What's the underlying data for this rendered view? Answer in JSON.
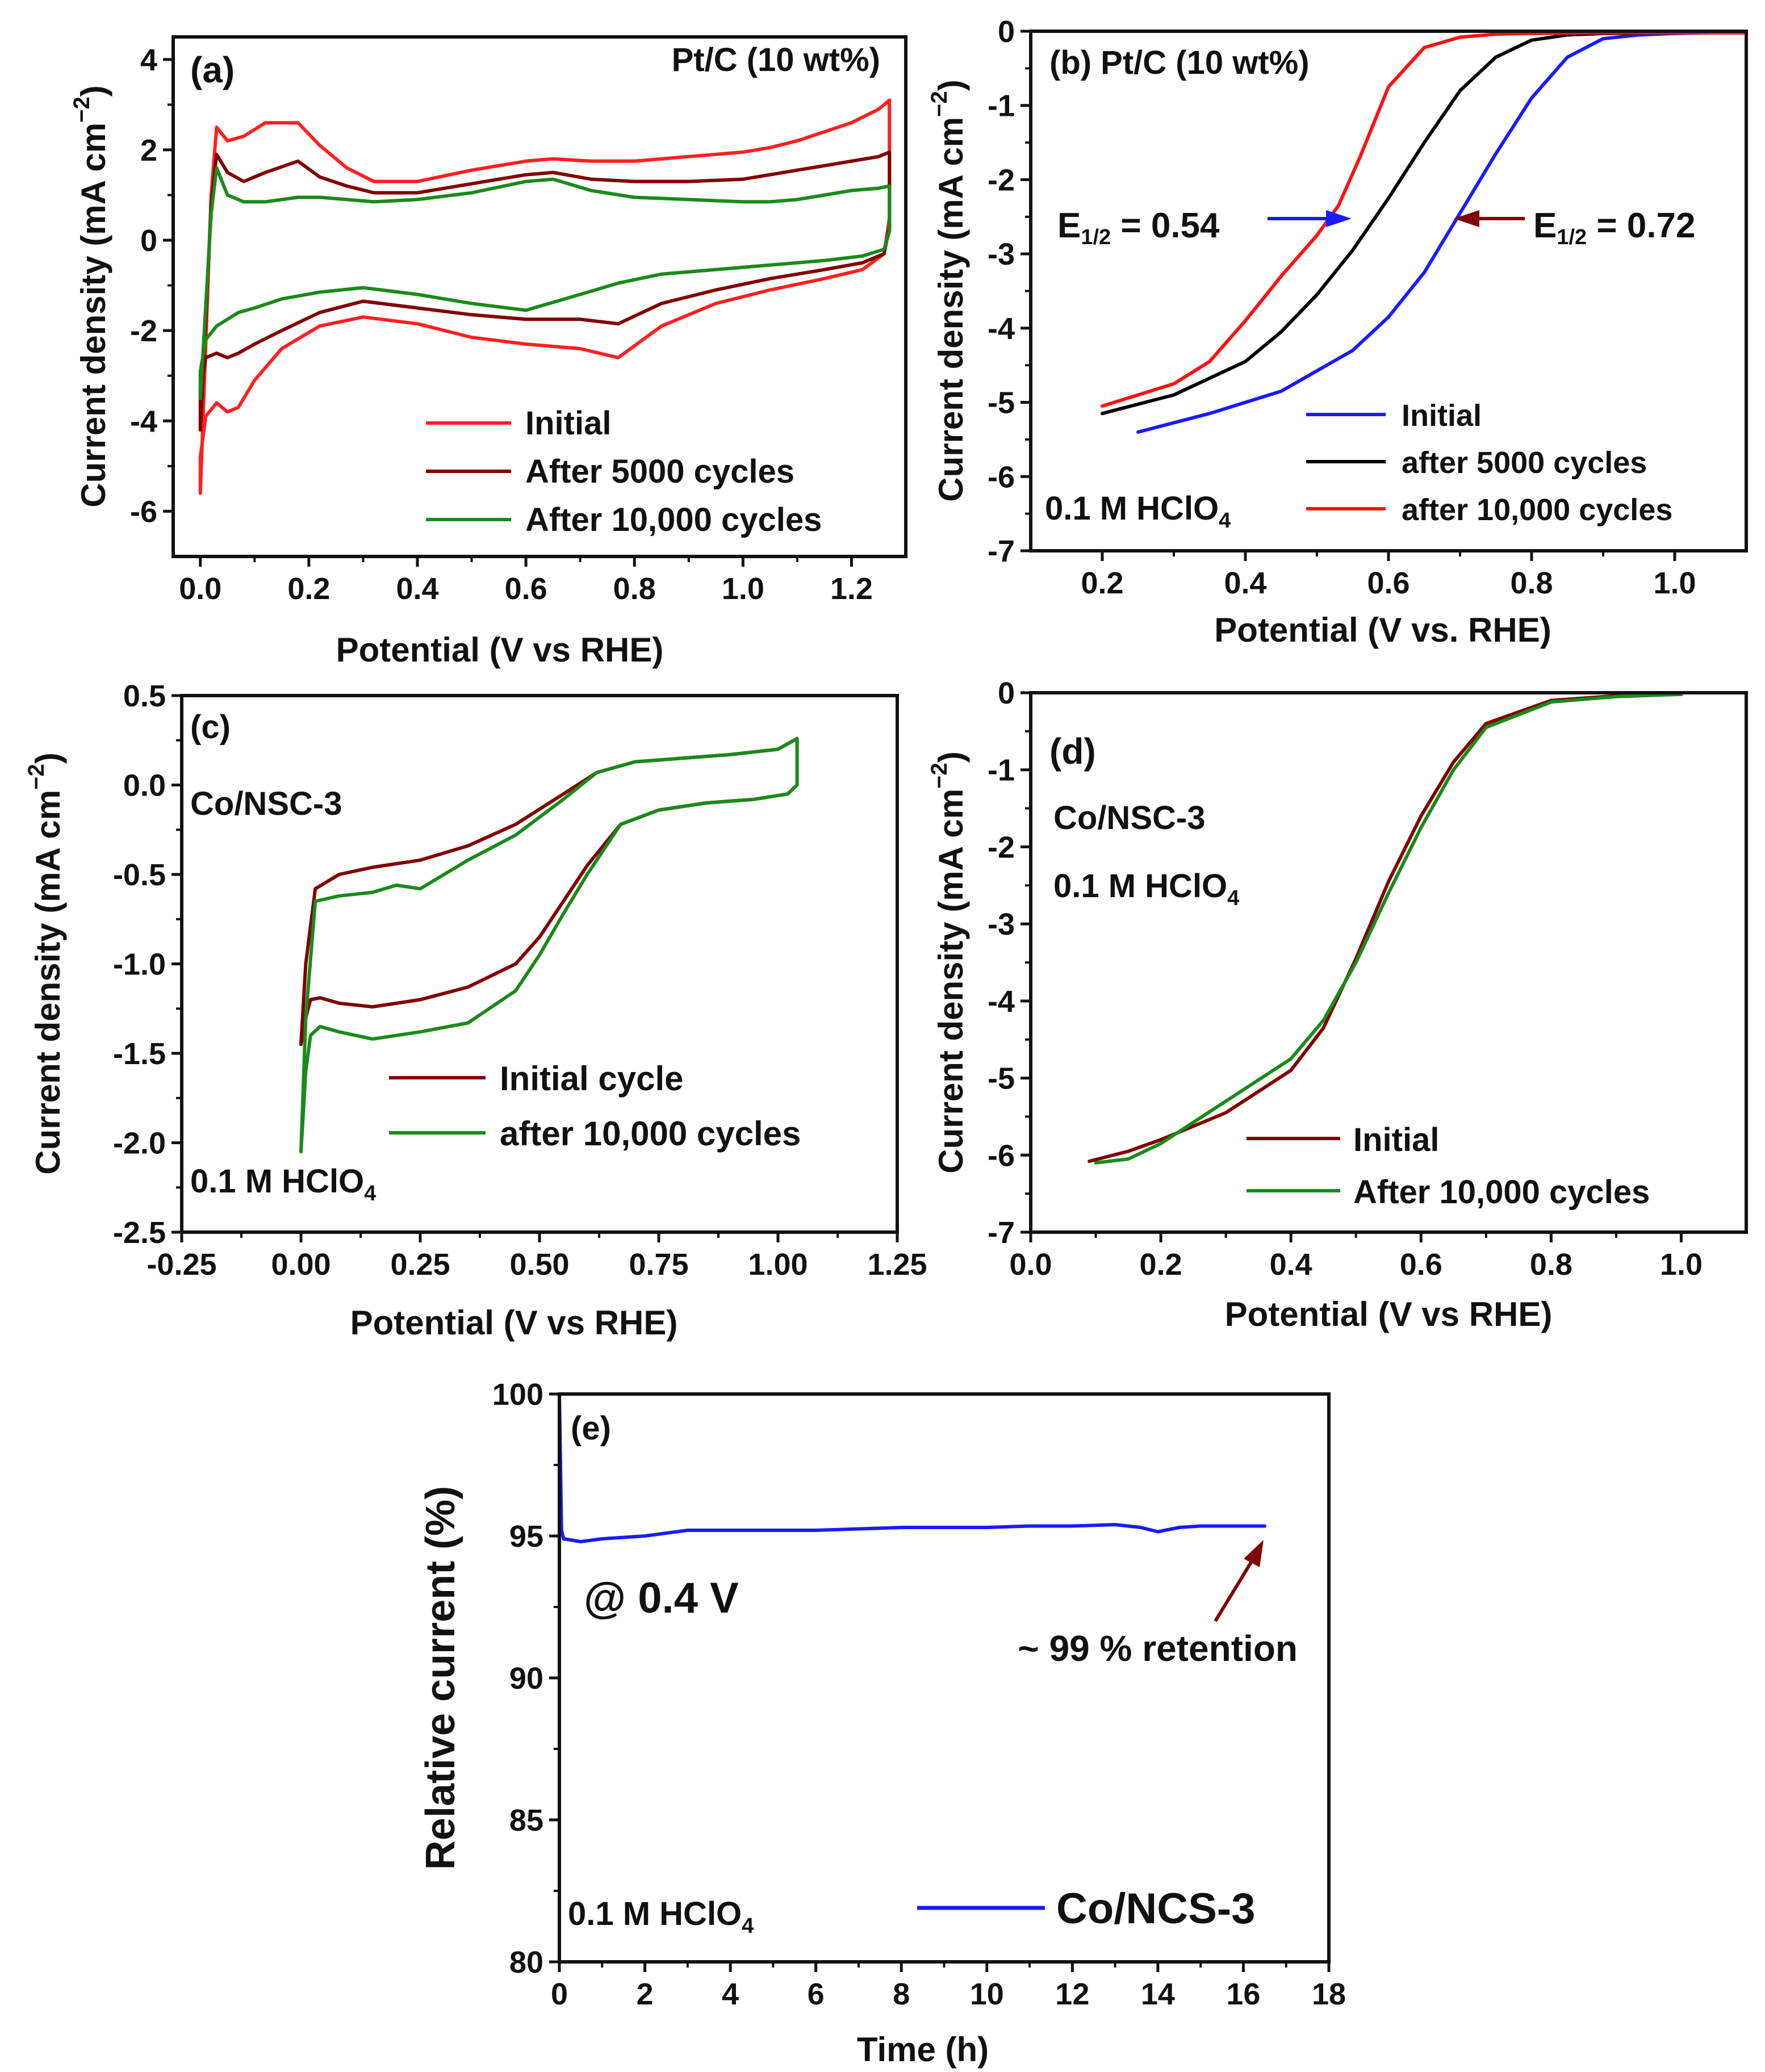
{
  "chart_data": [
    {
      "panel": "(a)",
      "type": "line",
      "title": "",
      "xlabel": "Potential (V vs RHE)",
      "ylabel": "Current density (mA cm−2)",
      "xlim": [
        -0.05,
        1.3
      ],
      "ylim": [
        -7,
        4.5
      ],
      "xticks": [
        "0.0",
        "0.2",
        "0.4",
        "0.6",
        "0.8",
        "1.0",
        "1.2"
      ],
      "yticks": [
        "-6",
        "-4",
        "-2",
        "0",
        "2",
        "4"
      ],
      "annotations": [
        "Pt/C (10 wt%)"
      ],
      "legend_position": "bottom-right",
      "series": [
        {
          "name": "Initial",
          "color": "#ff2020",
          "x": [
            0.0,
            0.02,
            0.03,
            0.05,
            0.08,
            0.12,
            0.18,
            0.22,
            0.27,
            0.32,
            0.4,
            0.5,
            0.6,
            0.65,
            0.72,
            0.8,
            0.9,
            1.0,
            1.05,
            1.1,
            1.15,
            1.2,
            1.25,
            1.27,
            1.27,
            1.26,
            1.22,
            1.15,
            1.05,
            0.95,
            0.85,
            0.77,
            0.7,
            0.6,
            0.5,
            0.4,
            0.3,
            0.22,
            0.15,
            0.1,
            0.07,
            0.05,
            0.03,
            0.01,
            0.0,
            0.0
          ],
          "y": [
            -5.6,
            1.0,
            2.5,
            2.2,
            2.3,
            2.6,
            2.6,
            2.1,
            1.6,
            1.3,
            1.3,
            1.55,
            1.75,
            1.8,
            1.75,
            1.75,
            1.85,
            1.95,
            2.05,
            2.2,
            2.4,
            2.6,
            2.9,
            3.1,
            0.5,
            -0.3,
            -0.65,
            -0.85,
            -1.1,
            -1.4,
            -1.9,
            -2.6,
            -2.4,
            -2.3,
            -2.15,
            -1.85,
            -1.7,
            -1.9,
            -2.4,
            -3.1,
            -3.7,
            -3.8,
            -3.6,
            -3.9,
            -4.8,
            -5.6
          ]
        },
        {
          "name": "After 5000 cycles",
          "color": "#800000",
          "x": [
            0.0,
            0.02,
            0.03,
            0.05,
            0.08,
            0.12,
            0.18,
            0.22,
            0.27,
            0.32,
            0.4,
            0.5,
            0.6,
            0.65,
            0.72,
            0.8,
            0.9,
            1.0,
            1.05,
            1.1,
            1.15,
            1.2,
            1.25,
            1.27,
            1.27,
            1.26,
            1.22,
            1.15,
            1.05,
            0.95,
            0.85,
            0.77,
            0.7,
            0.6,
            0.5,
            0.4,
            0.3,
            0.22,
            0.15,
            0.1,
            0.07,
            0.05,
            0.03,
            0.01,
            0.0,
            0.0
          ],
          "y": [
            -4.2,
            0.8,
            1.9,
            1.5,
            1.3,
            1.5,
            1.75,
            1.4,
            1.2,
            1.05,
            1.05,
            1.25,
            1.45,
            1.5,
            1.35,
            1.3,
            1.3,
            1.35,
            1.45,
            1.55,
            1.65,
            1.75,
            1.85,
            1.95,
            0.3,
            -0.3,
            -0.5,
            -0.65,
            -0.85,
            -1.1,
            -1.4,
            -1.85,
            -1.75,
            -1.75,
            -1.65,
            -1.5,
            -1.35,
            -1.6,
            -2.0,
            -2.3,
            -2.5,
            -2.6,
            -2.5,
            -2.6,
            -3.3,
            -4.2
          ]
        },
        {
          "name": "After 10,000 cycles",
          "color": "#1a8a1a",
          "x": [
            0.0,
            0.02,
            0.03,
            0.05,
            0.08,
            0.12,
            0.18,
            0.22,
            0.27,
            0.32,
            0.4,
            0.5,
            0.6,
            0.65,
            0.72,
            0.8,
            0.9,
            1.0,
            1.05,
            1.1,
            1.15,
            1.2,
            1.25,
            1.27,
            1.27,
            1.26,
            1.22,
            1.15,
            1.05,
            0.95,
            0.85,
            0.77,
            0.7,
            0.6,
            0.5,
            0.4,
            0.3,
            0.22,
            0.15,
            0.1,
            0.07,
            0.05,
            0.03,
            0.01,
            0.0,
            0.0
          ],
          "y": [
            -3.5,
            0.6,
            1.6,
            1.0,
            0.85,
            0.85,
            0.95,
            0.95,
            0.9,
            0.85,
            0.9,
            1.05,
            1.3,
            1.35,
            1.1,
            0.95,
            0.9,
            0.85,
            0.85,
            0.9,
            1.0,
            1.1,
            1.15,
            1.2,
            0.2,
            -0.2,
            -0.35,
            -0.45,
            -0.55,
            -0.65,
            -0.75,
            -0.95,
            -1.2,
            -1.55,
            -1.4,
            -1.2,
            -1.05,
            -1.15,
            -1.3,
            -1.5,
            -1.6,
            -1.75,
            -1.9,
            -2.2,
            -2.9,
            -3.5
          ]
        }
      ]
    },
    {
      "panel": "(b)",
      "type": "line",
      "title": "",
      "xlabel": "Potential (V vs. RHE)",
      "ylabel": "Current density (mA cm−2)",
      "xlim": [
        0.1,
        1.1
      ],
      "ylim": [
        -7,
        0
      ],
      "xticks": [
        "0.2",
        "0.4",
        "0.6",
        "0.8",
        "1.0"
      ],
      "yticks": [
        "-7",
        "-6",
        "-5",
        "-4",
        "-3",
        "-2",
        "-1",
        "0"
      ],
      "annotations": [
        "Pt/C (10 wt%)",
        "E1/2 = 0.54",
        "E1/2 = 0.72",
        "0.1 M HClO4"
      ],
      "legend_position": "bottom-right",
      "series": [
        {
          "name": "Initial",
          "color": "#1a1aff",
          "x": [
            0.25,
            0.35,
            0.45,
            0.55,
            0.6,
            0.65,
            0.7,
            0.75,
            0.8,
            0.85,
            0.9,
            0.95,
            1.0,
            1.05,
            1.1
          ],
          "y": [
            -5.4,
            -5.15,
            -4.85,
            -4.3,
            -3.85,
            -3.25,
            -2.45,
            -1.65,
            -0.9,
            -0.35,
            -0.1,
            -0.05,
            -0.03,
            -0.02,
            -0.02
          ]
        },
        {
          "name": "after 5000 cycles",
          "color": "#000000",
          "x": [
            0.2,
            0.3,
            0.4,
            0.45,
            0.5,
            0.55,
            0.6,
            0.65,
            0.7,
            0.75,
            0.8,
            0.85,
            0.9,
            1.0,
            1.1
          ],
          "y": [
            -5.15,
            -4.9,
            -4.45,
            -4.05,
            -3.55,
            -2.95,
            -2.25,
            -1.5,
            -0.8,
            -0.35,
            -0.12,
            -0.05,
            -0.03,
            -0.02,
            -0.02
          ]
        },
        {
          "name": "after 10,000 cycles",
          "color": "#ff1010",
          "x": [
            0.2,
            0.3,
            0.35,
            0.4,
            0.45,
            0.5,
            0.53,
            0.56,
            0.6,
            0.65,
            0.7,
            0.75,
            0.8,
            0.9,
            1.0,
            1.1
          ],
          "y": [
            -5.05,
            -4.75,
            -4.45,
            -3.9,
            -3.3,
            -2.75,
            -2.35,
            -1.7,
            -0.75,
            -0.22,
            -0.08,
            -0.04,
            -0.03,
            -0.02,
            -0.02,
            -0.02
          ]
        }
      ]
    },
    {
      "panel": "(c)",
      "type": "line",
      "title": "",
      "xlabel": "Potential (V vs RHE)",
      "ylabel": "Current density (mA cm−2)",
      "xlim": [
        -0.25,
        1.25
      ],
      "ylim": [
        -2.5,
        0.5
      ],
      "xticks": [
        "-0.25",
        "0.00",
        "0.25",
        "0.50",
        "0.75",
        "1.00",
        "1.25"
      ],
      "yticks": [
        "-2.5",
        "-2.0",
        "-1.5",
        "-1.0",
        "-0.5",
        "0.0",
        "0.5"
      ],
      "annotations": [
        "Co/NSC-3",
        "0.1 M HClO4"
      ],
      "legend_position": "bottom-right",
      "series": [
        {
          "name": "Initial cycle",
          "color": "#800000",
          "x": [
            0.0,
            0.01,
            0.03,
            0.08,
            0.15,
            0.25,
            0.35,
            0.45,
            0.55,
            0.62,
            0.7,
            0.8,
            0.9,
            1.0,
            1.04,
            1.04,
            1.02,
            0.95,
            0.85,
            0.75,
            0.67,
            0.6,
            0.55,
            0.5,
            0.45,
            0.35,
            0.25,
            0.15,
            0.08,
            0.04,
            0.02,
            0.01,
            0.0
          ],
          "y": [
            -1.45,
            -1.0,
            -0.58,
            -0.5,
            -0.46,
            -0.42,
            -0.34,
            -0.22,
            -0.05,
            0.07,
            0.13,
            0.15,
            0.17,
            0.2,
            0.26,
            0.0,
            -0.05,
            -0.08,
            -0.1,
            -0.14,
            -0.22,
            -0.45,
            -0.65,
            -0.85,
            -1.0,
            -1.13,
            -1.2,
            -1.24,
            -1.22,
            -1.19,
            -1.2,
            -1.3,
            -1.45
          ]
        },
        {
          "name": "after 10,000 cycles",
          "color": "#1a8a1a",
          "x": [
            0.0,
            0.01,
            0.03,
            0.08,
            0.15,
            0.2,
            0.25,
            0.35,
            0.45,
            0.55,
            0.62,
            0.7,
            0.8,
            0.9,
            1.0,
            1.04,
            1.04,
            1.02,
            0.95,
            0.85,
            0.75,
            0.67,
            0.6,
            0.55,
            0.5,
            0.45,
            0.35,
            0.25,
            0.15,
            0.08,
            0.04,
            0.02,
            0.01,
            0.0
          ],
          "y": [
            -2.05,
            -1.3,
            -0.65,
            -0.62,
            -0.6,
            -0.56,
            -0.58,
            -0.42,
            -0.28,
            -0.08,
            0.07,
            0.13,
            0.15,
            0.17,
            0.2,
            0.26,
            0.0,
            -0.05,
            -0.08,
            -0.1,
            -0.14,
            -0.22,
            -0.5,
            -0.72,
            -0.95,
            -1.15,
            -1.33,
            -1.38,
            -1.42,
            -1.38,
            -1.35,
            -1.4,
            -1.6,
            -2.05
          ]
        }
      ]
    },
    {
      "panel": "(d)",
      "type": "line",
      "title": "",
      "xlabel": "Potential (V vs RHE)",
      "ylabel": "Current density (mA cm−2)",
      "xlim": [
        0.0,
        1.1
      ],
      "ylim": [
        -7,
        0
      ],
      "xticks": [
        "0.0",
        "0.2",
        "0.4",
        "0.6",
        "0.8",
        "1.0"
      ],
      "yticks": [
        "-7",
        "-6",
        "-5",
        "-4",
        "-3",
        "-2",
        "-1",
        "0"
      ],
      "annotations": [
        "Co/NSC-3",
        "0.1 M HClO4"
      ],
      "legend_position": "bottom-right",
      "series": [
        {
          "name": "Initial",
          "color": "#800000",
          "x": [
            0.09,
            0.15,
            0.2,
            0.3,
            0.4,
            0.45,
            0.5,
            0.55,
            0.6,
            0.65,
            0.7,
            0.8,
            0.9,
            1.0
          ],
          "y": [
            -6.08,
            -5.95,
            -5.8,
            -5.45,
            -4.9,
            -4.35,
            -3.45,
            -2.45,
            -1.6,
            -0.9,
            -0.4,
            -0.1,
            -0.04,
            -0.02
          ]
        },
        {
          "name": "After 10,000 cycles",
          "color": "#1a8a1a",
          "x": [
            0.1,
            0.15,
            0.2,
            0.3,
            0.4,
            0.45,
            0.5,
            0.55,
            0.6,
            0.65,
            0.7,
            0.8,
            0.9,
            1.0
          ],
          "y": [
            -6.1,
            -6.05,
            -5.85,
            -5.3,
            -4.75,
            -4.25,
            -3.5,
            -2.6,
            -1.75,
            -1.0,
            -0.45,
            -0.12,
            -0.05,
            -0.02
          ]
        }
      ]
    },
    {
      "panel": "(e)",
      "type": "line",
      "title": "",
      "xlabel": "Time (h)",
      "ylabel": "Relative current (%)",
      "xlim": [
        0,
        18
      ],
      "ylim": [
        80,
        100
      ],
      "xticks": [
        "0",
        "2",
        "4",
        "6",
        "8",
        "10",
        "12",
        "14",
        "16",
        "18"
      ],
      "yticks": [
        "80",
        "85",
        "90",
        "95",
        "100"
      ],
      "annotations": [
        "@ 0.4 V",
        "~ 99 % retention",
        "0.1 M HClO4"
      ],
      "legend_position": "bottom-right",
      "series": [
        {
          "name": "Co/NCS-3",
          "color": "#1a1aff",
          "x": [
            0,
            0.05,
            0.1,
            0.5,
            1,
            2,
            3,
            4,
            5,
            6,
            7,
            8,
            9,
            10,
            11,
            12,
            13,
            13.6,
            14,
            14.5,
            15,
            16,
            16.5
          ],
          "y": [
            100,
            95.2,
            94.9,
            94.8,
            94.9,
            95.0,
            95.2,
            95.2,
            95.2,
            95.2,
            95.25,
            95.3,
            95.3,
            95.3,
            95.35,
            95.35,
            95.4,
            95.3,
            95.15,
            95.3,
            95.35,
            95.35,
            95.35
          ]
        }
      ]
    }
  ],
  "text": {
    "a_label": "(a)",
    "a_sample": "Pt/C (10 wt%)",
    "b_label": "(b) Pt/C (10 wt%)",
    "b_e12_left": "E",
    "b_e12_left_sub": "1/2",
    "b_e12_left_val": " = 0.54",
    "b_e12_right": "E",
    "b_e12_right_sub": "1/2",
    "b_e12_right_val": " = 0.72",
    "b_electrolyte": "0.1 M HClO",
    "electrolyte_sub": "4",
    "c_label": "(c)",
    "c_sample": "Co/NSC-3",
    "c_electrolyte": "0.1 M HClO",
    "d_label": "(d)",
    "d_sample": "Co/NSC-3",
    "d_electrolyte": "0.1 M HClO",
    "e_label": "(e)",
    "e_potential": "@ 0.4 V",
    "e_retention": "~ 99 % retention",
    "e_electrolyte": "0.1 M HClO",
    "ylabel_cd": "Current density (mA cm",
    "ylabel_cd_sup": "−2",
    "ylabel_cd_close": ")",
    "xlabel_a": "Potential (V vs RHE)",
    "xlabel_b": "Potential (V vs. RHE)",
    "xlabel_c": "Potential (V vs RHE)",
    "xlabel_d": "Potential (V vs RHE)",
    "xlabel_e": "Time (h)",
    "ylabel_e": "Relative current (%)"
  }
}
